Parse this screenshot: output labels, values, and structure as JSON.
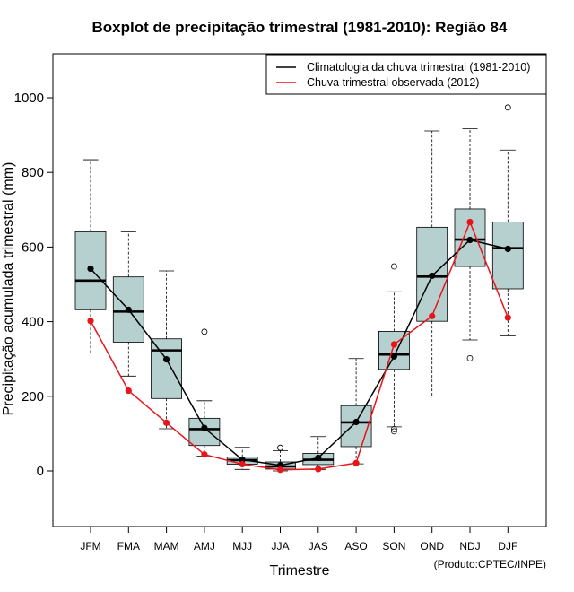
{
  "chart_data": {
    "type": "boxplot",
    "title": "Boxplot de precipitação trimestral (1981-2010): Região 84",
    "xlabel": "Trimestre",
    "ylabel": "Precipitação acumulada trimestral (mm)",
    "credit": "(Produto:CPTEC/INPE)",
    "ylim": [
      -145,
      1115
    ],
    "yticks": [
      0,
      200,
      400,
      600,
      800,
      1000
    ],
    "categories": [
      "JFM",
      "FMA",
      "MAM",
      "AMJ",
      "MJJ",
      "JJA",
      "JAS",
      "ASO",
      "SON",
      "OND",
      "NDJ",
      "DJF"
    ],
    "boxes": [
      {
        "whisker_low": 316,
        "q1": 432,
        "median": 510,
        "q3": 641,
        "whisker_high": 834,
        "outliers": []
      },
      {
        "whisker_low": 254,
        "q1": 345,
        "median": 427,
        "q3": 520,
        "whisker_high": 641,
        "outliers": []
      },
      {
        "whisker_low": 113,
        "q1": 194,
        "median": 323,
        "q3": 354,
        "whisker_high": 536,
        "outliers": []
      },
      {
        "whisker_low": 40,
        "q1": 68,
        "median": 112,
        "q3": 141,
        "whisker_high": 188,
        "outliers": [
          373
        ]
      },
      {
        "whisker_low": 4,
        "q1": 18,
        "median": 29,
        "q3": 37,
        "whisker_high": 63,
        "outliers": []
      },
      {
        "whisker_low": 0,
        "q1": 5,
        "median": 12,
        "q3": 24,
        "whisker_high": 54,
        "outliers": [
          62
        ]
      },
      {
        "whisker_low": 4,
        "q1": 17,
        "median": 30,
        "q3": 47,
        "whisker_high": 92,
        "outliers": []
      },
      {
        "whisker_low": 19,
        "q1": 65,
        "median": 130,
        "q3": 175,
        "whisker_high": 301,
        "outliers": []
      },
      {
        "whisker_low": 118,
        "q1": 272,
        "median": 312,
        "q3": 374,
        "whisker_high": 480,
        "outliers": [
          548,
          112,
          106
        ]
      },
      {
        "whisker_low": 201,
        "q1": 401,
        "median": 521,
        "q3": 653,
        "whisker_high": 911,
        "outliers": []
      },
      {
        "whisker_low": 351,
        "q1": 548,
        "median": 620,
        "q3": 702,
        "whisker_high": 917,
        "outliers": [
          302
        ]
      },
      {
        "whisker_low": 362,
        "q1": 488,
        "median": 597,
        "q3": 667,
        "whisker_high": 860,
        "outliers": [
          974
        ]
      }
    ],
    "series": [
      {
        "name": "Climatologia da chuva trimestral (1981-2010)",
        "color": "#000000",
        "values": [
          542,
          432,
          299,
          115,
          30,
          15,
          35,
          131,
          307,
          523,
          619,
          595
        ]
      },
      {
        "name": "Chuva trimestral observada (2012)",
        "color": "#e8141a",
        "values": [
          402,
          215,
          129,
          44,
          18,
          3,
          5,
          21,
          339,
          415,
          667,
          411
        ]
      }
    ],
    "legend_position": "top-right",
    "box_fill": "#b6cfcf"
  }
}
